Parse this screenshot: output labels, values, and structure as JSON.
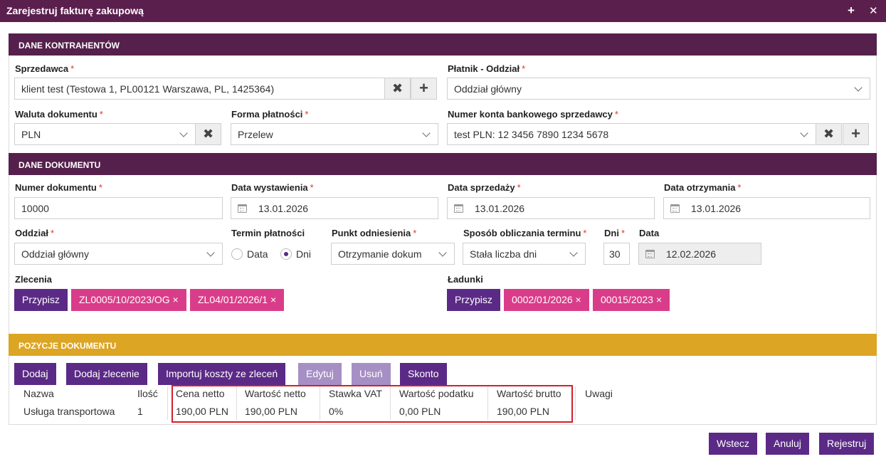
{
  "window": {
    "title": "Zarejestruj fakturę zakupową",
    "plus_icon": "+",
    "close_icon": "✕"
  },
  "sections": {
    "kontrahenci": "DANE KONTRAHENTÓW",
    "dokument": "DANE DOKUMENTU",
    "pozycje": "POZYCJE DOKUMENTU"
  },
  "kontrahenci": {
    "sprzedawca": {
      "label": "Sprzedawca",
      "value": "klient test (Testowa 1, PL00121 Warszawa, PL, 1425364)"
    },
    "platnik": {
      "label": "Płatnik - Oddział",
      "value": "Oddział główny"
    },
    "waluta": {
      "label": "Waluta dokumentu",
      "value": "PLN"
    },
    "forma": {
      "label": "Forma płatności",
      "value": "Przelew"
    },
    "konto": {
      "label": "Numer konta bankowego sprzedawcy",
      "value": "test PLN: 12 3456 7890 1234 5678"
    }
  },
  "dokument": {
    "numer": {
      "label": "Numer dokumentu",
      "value": "10000"
    },
    "data_wystawienia": {
      "label": "Data wystawienia",
      "value": "13.01.2026"
    },
    "data_sprzedazy": {
      "label": "Data sprzedaży",
      "value": "13.01.2026"
    },
    "data_otrzymania": {
      "label": "Data otrzymania",
      "value": "13.01.2026"
    },
    "oddzial": {
      "label": "Oddział",
      "value": "Oddział główny"
    },
    "termin": {
      "label": "Termin płatności",
      "opt_data": "Data",
      "opt_dni": "Dni",
      "selected": "Dni"
    },
    "punkt": {
      "label": "Punkt odniesienia",
      "value": "Otrzymanie dokum"
    },
    "sposob": {
      "label": "Sposób obliczania terminu",
      "value": "Stała liczba dni"
    },
    "dni": {
      "label": "Dni",
      "value": "30"
    },
    "data": {
      "label": "Data",
      "value": "12.02.2026"
    },
    "zlecenia": {
      "label": "Zlecenia",
      "assign": "Przypisz",
      "tags": [
        "ZL0005/10/2023/OG ×",
        "ZL04/01/2026/1 ×"
      ]
    },
    "ladunki": {
      "label": "Ładunki",
      "assign": "Przypisz",
      "tags": [
        "0002/01/2026 ×",
        "00015/2023 ×"
      ]
    }
  },
  "pozycje": {
    "buttons": {
      "dodaj": "Dodaj",
      "dodaj_zlecenie": "Dodaj zlecenie",
      "importuj": "Importuj koszty ze zleceń",
      "edytuj": "Edytuj",
      "usun": "Usuń",
      "skonto": "Skonto"
    },
    "columns": [
      "Nazwa",
      "Ilość",
      "Cena netto",
      "Wartość netto",
      "Stawka VAT",
      "Wartość podatku",
      "Wartość brutto",
      "Uwagi"
    ],
    "rows": [
      [
        "Usługa transportowa",
        "1",
        "190,00 PLN",
        "190,00 PLN",
        "0%",
        "0,00 PLN",
        "190,00 PLN",
        ""
      ]
    ]
  },
  "footer": {
    "wstecz": "Wstecz",
    "anuluj": "Anuluj",
    "rejestruj": "Rejestruj"
  },
  "colors": {
    "header_purple": "#5b1f4e",
    "section_purple": "#55204c",
    "section_gold": "#dca524",
    "button_purple": "#5b2a86",
    "tag_pink": "#d93d8a",
    "required_red": "#e0342e",
    "highlight_red": "#d4202a"
  }
}
